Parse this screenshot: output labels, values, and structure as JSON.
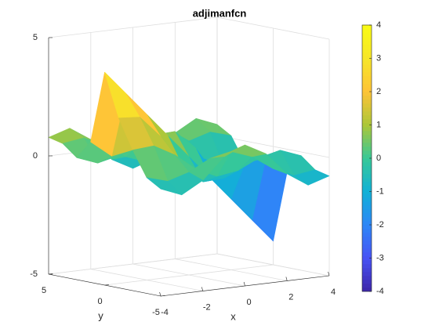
{
  "chart_data": {
    "type": "surface",
    "title": "adjimanfcn",
    "xlabel": "x",
    "ylabel": "y",
    "x": [
      -4,
      -3,
      -2,
      -1,
      0,
      1,
      2,
      3,
      4
    ],
    "y": [
      -5,
      -3.75,
      -2.5,
      -1.25,
      0,
      1.25,
      2.5,
      3.75,
      5
    ],
    "z": [
      [
        -0.47,
        -0.83,
        -0.32,
        0.56,
        0.96,
        0.48,
        -0.48,
        -1.06,
        -0.78
      ],
      [
        -0.11,
        -0.37,
        -0.1,
        0.38,
        0.57,
        0.24,
        -0.37,
        -0.77,
        -0.64
      ],
      [
        0.94,
        1.01,
        0.52,
        -0.19,
        -0.6,
        -0.46,
        -0.03,
        0.18,
        -0.16
      ],
      [
        2.18,
        2.11,
        1.18,
        -0.12,
        -0.95,
        -0.9,
        -0.39,
        -0.23,
        -0.94
      ],
      [
        4,
        3,
        2,
        1,
        0,
        -1,
        -2,
        -3,
        -4
      ],
      [
        0.94,
        0.23,
        0.39,
        0.9,
        0.95,
        0.12,
        -1.18,
        -2.11,
        -2.18
      ],
      [
        0.16,
        -0.18,
        0.03,
        0.46,
        0.6,
        0.19,
        -0.52,
        -1.01,
        -0.94
      ],
      [
        0.64,
        0.77,
        0.37,
        -0.24,
        -0.57,
        -0.38,
        0.1,
        0.37,
        0.11
      ],
      [
        0.78,
        1.06,
        0.48,
        -0.48,
        -0.96,
        -0.56,
        0.32,
        0.83,
        0.47
      ]
    ],
    "xlim": [
      -4,
      4
    ],
    "ylim": [
      -5,
      5
    ],
    "zlim": [
      -5,
      5
    ],
    "xticks": [
      -4,
      -2,
      0,
      2,
      4
    ],
    "yticks": [
      -5,
      0,
      5
    ],
    "zticks": [
      -5,
      0,
      5
    ],
    "clim": [
      -4,
      4
    ],
    "cticks": [
      -4,
      -3,
      -2,
      -1,
      0,
      1,
      2,
      3,
      4
    ],
    "colormap": "parula",
    "grid": true
  }
}
